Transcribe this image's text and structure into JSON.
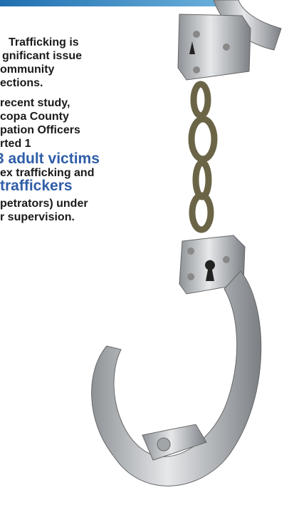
{
  "text_lines": [
    "Trafficking is",
    "gnificant issue",
    "ommunity",
    "ections.",
    "recent study,",
    "copa County",
    "pation Officers",
    "rted 1"
  ],
  "highlight_victims": "3 adult victims",
  "line_sex_trafficking": "ex trafficking and",
  "highlight_traffickers": "traffickers",
  "closing_lines": [
    "petrators) under",
    "r supervision."
  ]
}
